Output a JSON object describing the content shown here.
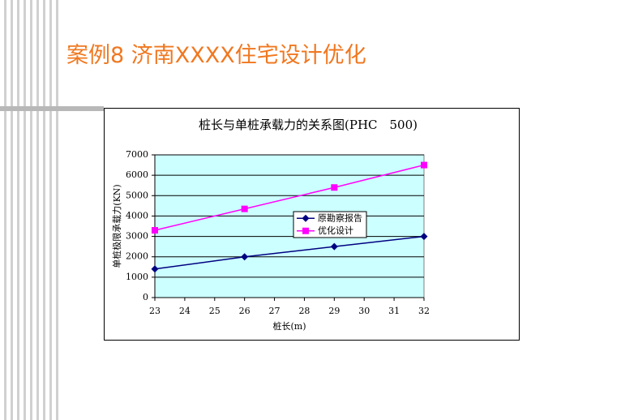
{
  "slide_title": "案例8 济南XXXX住宅设计优化",
  "chart_data": {
    "type": "line",
    "title": "桩长与单桩承载力的关系图(PHC　500)",
    "x_label": "桩长(m)",
    "y_label": "单桩极限承载力(KN)",
    "x": [
      23,
      26,
      29,
      32
    ],
    "series": [
      {
        "name": "原勘察报告",
        "color": "#000080",
        "marker": "diamond",
        "values": [
          1400,
          2000,
          2500,
          3000
        ]
      },
      {
        "name": "优化设计",
        "color": "#ff00ff",
        "marker": "square",
        "values": [
          3300,
          4350,
          5400,
          6500
        ]
      }
    ],
    "xlim": [
      23,
      32
    ],
    "xticks": [
      23,
      24,
      25,
      26,
      27,
      28,
      29,
      30,
      31,
      32
    ],
    "ylim": [
      0,
      7000
    ],
    "yticks": [
      0,
      1000,
      2000,
      3000,
      4000,
      5000,
      6000,
      7000
    ],
    "grid": true,
    "plot_background": "#ccffff"
  }
}
